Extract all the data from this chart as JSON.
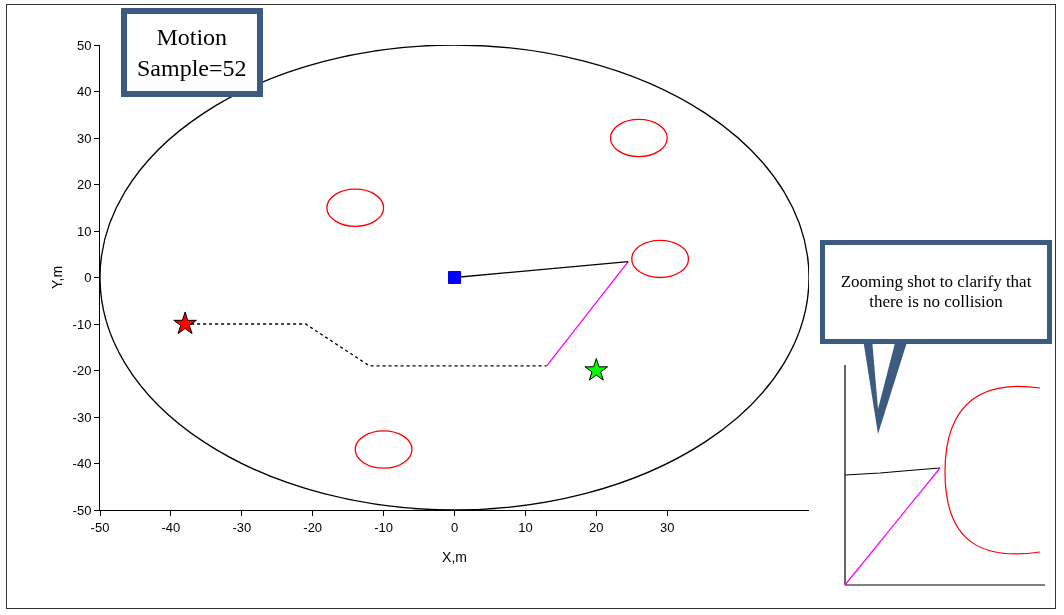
{
  "chart_data": {
    "type": "line",
    "xlabel": "X,m",
    "ylabel": "Y,m",
    "xlim": [
      -50,
      50
    ],
    "ylim": [
      -50,
      50
    ],
    "xticks": [
      -50,
      -40,
      -30,
      -20,
      -10,
      0,
      10,
      20,
      30
    ],
    "yticks": [
      -50,
      -40,
      -30,
      -20,
      -10,
      0,
      10,
      20,
      30,
      40,
      50
    ],
    "grid": false,
    "annotations": [
      "Motion\nSample=52",
      "Zooming shot to clarify that there is no collision"
    ],
    "series": [
      {
        "color": "#000000",
        "line_style": "dotted",
        "marker": "none",
        "x": [
          -38,
          -21,
          -12,
          13
        ],
        "values": [
          -10,
          -10,
          -19,
          -19
        ]
      },
      {
        "color": "#ff00ff",
        "line_style": "solid",
        "marker": "none",
        "x": [
          13,
          24.5
        ],
        "values": [
          -19,
          3.4
        ]
      },
      {
        "color": "#000000",
        "line_style": "solid",
        "marker": "none",
        "x": [
          0,
          24.5
        ],
        "values": [
          0,
          3.4
        ]
      },
      {
        "type": "scatter",
        "color": "#ff0000",
        "marker": "star",
        "x": [
          -38
        ],
        "values": [
          -10
        ]
      },
      {
        "type": "scatter",
        "color": "#00ff00",
        "marker": "star",
        "x": [
          20
        ],
        "values": [
          -20
        ]
      },
      {
        "type": "scatter",
        "color": "#0000ff",
        "marker": "square",
        "x": [
          0
        ],
        "values": [
          0
        ]
      }
    ]
  }
}
